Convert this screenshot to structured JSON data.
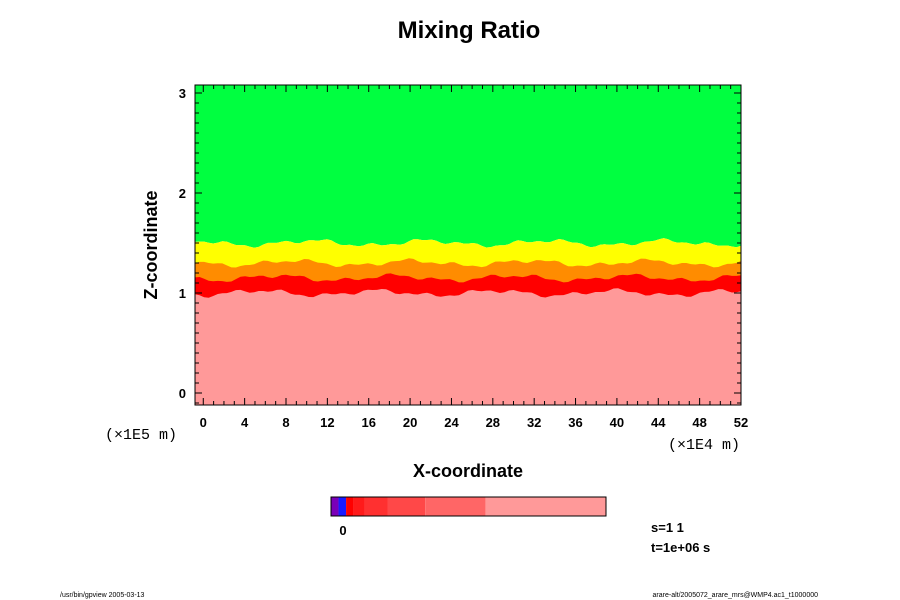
{
  "chart_data": {
    "type": "heatmap",
    "title": "Mixing Ratio",
    "xlabel": "X-coordinate",
    "ylabel": "Z-coordinate",
    "x_scale_label": "(×1E4 m)",
    "y_scale_label": "(×1E5 m)",
    "xlim": [
      -0.8,
      52
    ],
    "ylim": [
      -0.12,
      3.08
    ],
    "x_ticks": [
      "0",
      "4",
      "8",
      "12",
      "16",
      "20",
      "24",
      "28",
      "32",
      "36",
      "40",
      "44",
      "48",
      "52"
    ],
    "y_ticks": [
      "0",
      "1",
      "2",
      "3"
    ],
    "layers": [
      {
        "level": "upper",
        "z_from": 1.5,
        "z_to": 3.08,
        "color": "#00ff40"
      },
      {
        "level": "transition",
        "z_from": 1.2,
        "z_to": 1.5,
        "color": "#ffff00"
      },
      {
        "level": "mixing-top",
        "z_from": 1.05,
        "z_to": 1.3,
        "color": "#ff8c00"
      },
      {
        "level": "mixing-core",
        "z_from": 0.95,
        "z_to": 1.15,
        "color": "#ff0000"
      },
      {
        "level": "lower",
        "z_from": -0.12,
        "z_to": 1.0,
        "color": "#ff9999"
      }
    ],
    "colorbar": {
      "tick_label": "0",
      "segments": [
        "#7a00b8",
        "#1a1aff",
        "#ff0000",
        "#ff1a1a",
        "#ff3030",
        "#ff4848",
        "#ff6666",
        "#ff9999"
      ]
    },
    "annotations": [
      "s=1 1",
      "t=1e+06 s"
    ]
  },
  "footer": {
    "left": "/usr/bin/gpview 2005-03-13",
    "right": "arare-alt/2005072_arare_mrs@WMP4.ac1_t1000000"
  }
}
